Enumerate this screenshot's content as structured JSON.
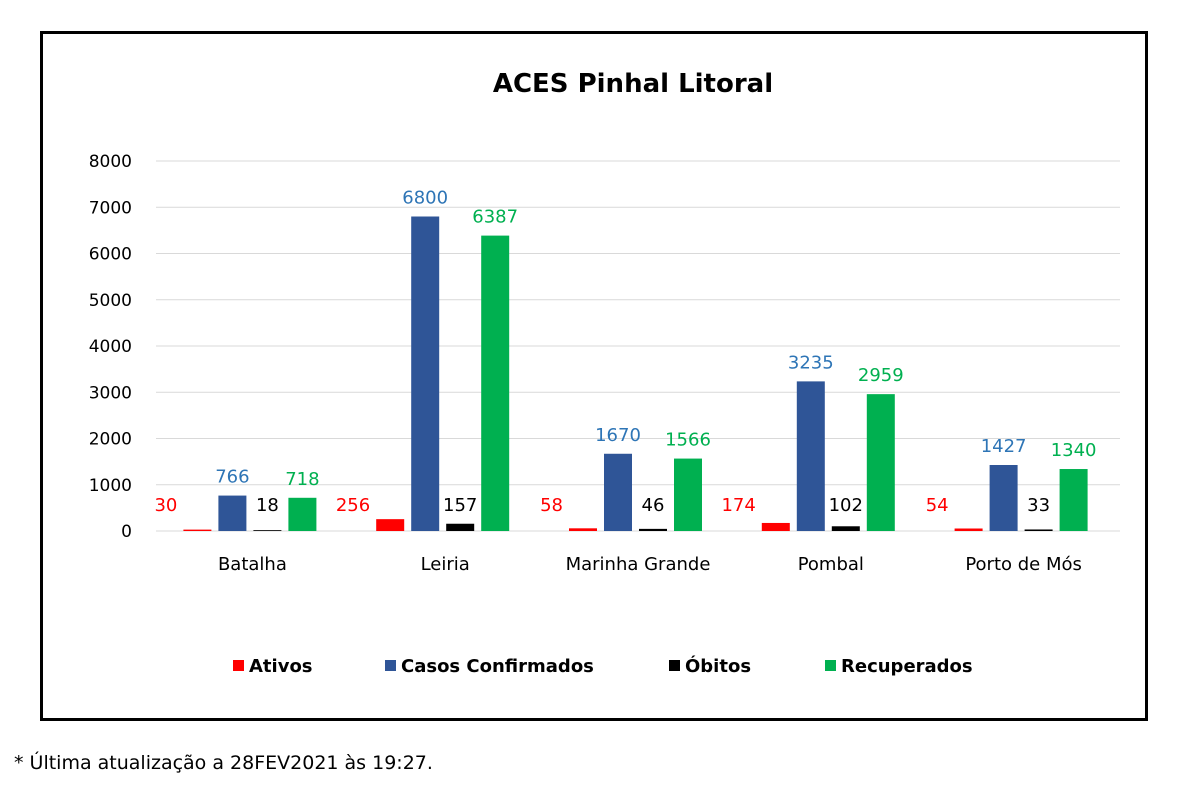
{
  "chart_data": {
    "type": "bar",
    "title": "ACES Pinhal Litoral",
    "categories": [
      "Batalha",
      "Leiria",
      "Marinha Grande",
      "Pombal",
      "Porto de Mós"
    ],
    "series": [
      {
        "name": "Ativos",
        "color": "#ff0000",
        "label_color": "#ff0000",
        "values": [
          30,
          256,
          58,
          174,
          54
        ]
      },
      {
        "name": "Casos Confirmados",
        "color": "#2f5597",
        "label_color": "#2e75b6",
        "values": [
          766,
          6800,
          1670,
          3235,
          1427
        ]
      },
      {
        "name": "Óbitos",
        "color": "#000000",
        "label_color": "#000000",
        "values": [
          18,
          157,
          46,
          102,
          33
        ]
      },
      {
        "name": "Recuperados",
        "color": "#00b050",
        "label_color": "#00b050",
        "values": [
          718,
          6387,
          1566,
          2959,
          1340
        ]
      }
    ],
    "ylim": [
      0,
      8000
    ],
    "yticks": [
      0,
      1000,
      2000,
      3000,
      4000,
      5000,
      6000,
      7000,
      8000
    ],
    "grid": true,
    "legend": "bottom"
  },
  "footnote": "* Última atualização a 28FEV2021 às 19:27."
}
